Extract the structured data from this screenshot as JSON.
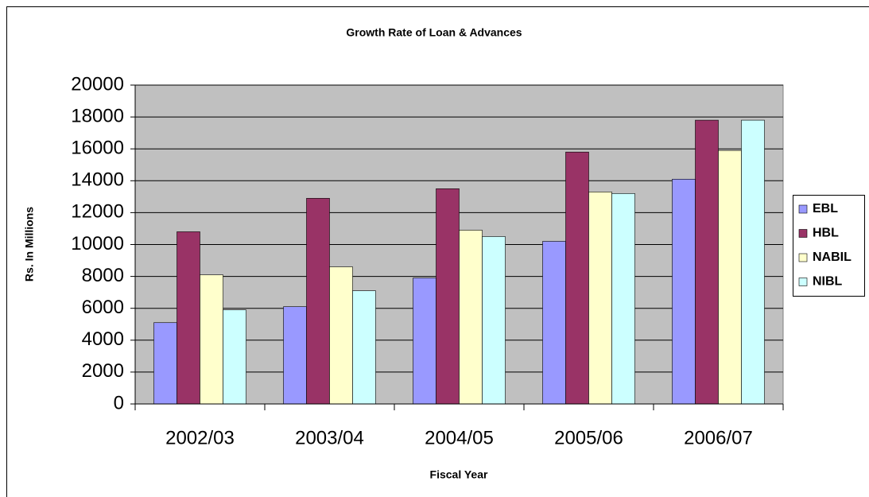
{
  "chart_data": {
    "type": "bar",
    "title": "Growth Rate of Loan & Advances",
    "x_label": "Fiscal Year",
    "y_label": "Rs. In Millions",
    "categories": [
      "2002/03",
      "2003/04",
      "2004/05",
      "2005/06",
      "2006/07"
    ],
    "series": [
      {
        "name": "EBL",
        "color": "#9999ff",
        "values": [
          5100,
          6100,
          7900,
          10200,
          14100
        ]
      },
      {
        "name": "HBL",
        "color": "#993366",
        "values": [
          10800,
          12900,
          13500,
          15800,
          17800
        ]
      },
      {
        "name": "NABIL",
        "color": "#ffffcc",
        "values": [
          8100,
          8600,
          10900,
          13300,
          15900
        ]
      },
      {
        "name": "NIBL",
        "color": "#ccffff",
        "values": [
          5900,
          7100,
          10500,
          13200,
          17800
        ]
      }
    ],
    "ylim": [
      0,
      20000
    ],
    "yticks": [
      0,
      2000,
      4000,
      6000,
      8000,
      10000,
      12000,
      14000,
      16000,
      18000,
      20000
    ],
    "grid": true,
    "legend": "right"
  }
}
